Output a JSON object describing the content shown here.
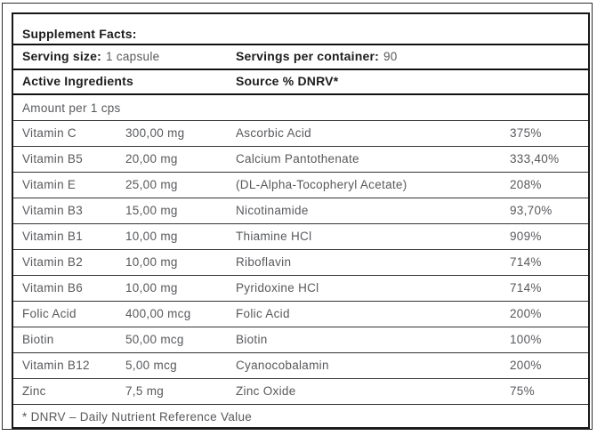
{
  "label": {
    "title": "Supplement Facts:",
    "serving": {
      "size_label": "Serving size:",
      "size_value": "1 capsule",
      "per_container_label": "Servings per container:",
      "per_container_value": "90"
    },
    "column_headers": {
      "active_ingredients": "Active Ingredients",
      "source_dnrv": "Source % DNRV*"
    },
    "amount_header": "Amount per 1 cps",
    "rows": [
      {
        "name": "Vitamin C",
        "amount": "300,00 mg",
        "source": "Ascorbic Acid",
        "dnrv": "375%"
      },
      {
        "name": "Vitamin B5",
        "amount": "20,00 mg",
        "source": "Calcium Pantothenate",
        "dnrv": "333,40%"
      },
      {
        "name": "Vitamin E",
        "amount": "25,00 mg",
        "source": "(DL-Alpha-Tocopheryl Acetate)",
        "dnrv": "208%"
      },
      {
        "name": "Vitamin B3",
        "amount": "15,00 mg",
        "source": "Nicotinamide",
        "dnrv": "93,70%"
      },
      {
        "name": "Vitamin B1",
        "amount": "10,00 mg",
        "source": "Thiamine HCl",
        "dnrv": "909%"
      },
      {
        "name": "Vitamin B2",
        "amount": "10,00 mg",
        "source": "Riboflavin",
        "dnrv": "714%"
      },
      {
        "name": "Vitamin B6",
        "amount": "10,00 mg",
        "source": "Pyridoxine HCl",
        "dnrv": "714%"
      },
      {
        "name": "Folic Acid",
        "amount": "400,00 mcg",
        "source": "Folic Acid",
        "dnrv": "200%"
      },
      {
        "name": "Biotin",
        "amount": "50,00 mcg",
        "source": "Biotin",
        "dnrv": "100%"
      },
      {
        "name": "Vitamin B12",
        "amount": "5,00 mcg",
        "source": "Cyanocobalamin",
        "dnrv": "200%"
      },
      {
        "name": "Zinc",
        "amount": "7,5 mg",
        "source": "Zinc Oxide",
        "dnrv": "75%"
      }
    ],
    "footnote": "* DNRV – Daily Nutrient Reference Value",
    "colors": {
      "heading_text": "#1d1d1f",
      "body_text": "#58595c",
      "border": "#161616",
      "background": "#ffffff"
    }
  }
}
